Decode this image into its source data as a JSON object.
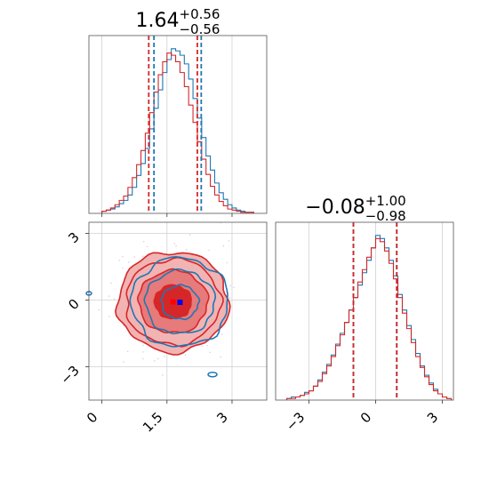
{
  "chart_data": [
    {
      "panel": "hist-param-1",
      "type": "histogram",
      "title": {
        "main": "1.64",
        "sup": "+0.56",
        "sub": "−0.56"
      },
      "xlim": [
        -0.3,
        3.8
      ],
      "x_ticks": [
        0.0,
        1.5,
        3.0
      ],
      "grid": true,
      "series": [
        {
          "color": "#1f77b4",
          "quantiles": [
            1.2,
            2.29
          ],
          "bins": [
            0.0,
            0.1,
            0.2,
            0.3,
            0.4,
            0.5,
            0.6,
            0.7,
            0.8,
            0.9,
            1.0,
            1.1,
            1.2,
            1.3,
            1.4,
            1.5,
            1.6,
            1.7,
            1.8,
            1.9,
            2.0,
            2.1,
            2.2,
            2.3,
            2.4,
            2.5,
            2.6,
            2.7,
            2.8,
            2.9,
            3.0,
            3.1,
            3.2,
            3.3,
            3.4,
            3.5
          ],
          "counts": [
            2,
            3,
            4,
            6,
            9,
            12,
            17,
            24,
            35,
            46,
            60,
            78,
            97,
            114,
            130,
            142,
            152,
            150,
            146,
            138,
            124,
            106,
            88,
            70,
            53,
            40,
            28,
            19,
            13,
            8,
            5,
            3,
            2,
            1,
            1
          ]
        },
        {
          "color": "#d62728",
          "quantiles": [
            1.08,
            2.2
          ],
          "bins": [
            0.0,
            0.1,
            0.2,
            0.3,
            0.4,
            0.5,
            0.6,
            0.7,
            0.8,
            0.9,
            1.0,
            1.1,
            1.2,
            1.3,
            1.4,
            1.5,
            1.6,
            1.7,
            1.8,
            1.9,
            2.0,
            2.1,
            2.2,
            2.3,
            2.4,
            2.5,
            2.6,
            2.7,
            2.8,
            2.9,
            3.0,
            3.1,
            3.2,
            3.3,
            3.4,
            3.5
          ],
          "counts": [
            2,
            3,
            5,
            8,
            12,
            16,
            24,
            33,
            45,
            58,
            74,
            93,
            112,
            128,
            140,
            148,
            146,
            140,
            130,
            117,
            100,
            84,
            66,
            50,
            36,
            25,
            17,
            11,
            7,
            4,
            3,
            2,
            1,
            1,
            1
          ]
        }
      ]
    },
    {
      "panel": "hist-param-2",
      "type": "histogram",
      "title": {
        "main": "−0.08",
        "sup": "+1.00",
        "sub": "−0.98"
      },
      "xlim": [
        -4.5,
        3.5
      ],
      "x_ticks": [
        -3,
        0,
        3
      ],
      "grid": true,
      "series": [
        {
          "color": "#1f77b4",
          "quantiles": [
            -1.0,
            0.95
          ],
          "bins": [
            -4.0,
            -3.8,
            -3.6,
            -3.4,
            -3.2,
            -3.0,
            -2.8,
            -2.6,
            -2.4,
            -2.2,
            -2.0,
            -1.8,
            -1.6,
            -1.4,
            -1.2,
            -1.0,
            -0.8,
            -0.6,
            -0.4,
            -0.2,
            0.0,
            0.2,
            0.4,
            0.6,
            0.8,
            1.0,
            1.2,
            1.4,
            1.6,
            1.8,
            2.0,
            2.2,
            2.4,
            2.6,
            2.8,
            3.0,
            3.2,
            3.4
          ],
          "counts": [
            1,
            2,
            2,
            3,
            5,
            6,
            9,
            13,
            18,
            23,
            29,
            36,
            43,
            50,
            58,
            66,
            74,
            82,
            90,
            98,
            106,
            104,
            98,
            90,
            80,
            68,
            58,
            48,
            39,
            30,
            22,
            16,
            11,
            7,
            4,
            2,
            1
          ]
        },
        {
          "color": "#d62728",
          "quantiles": [
            -1.0,
            0.95
          ],
          "bins": [
            -4.0,
            -3.8,
            -3.6,
            -3.4,
            -3.2,
            -3.0,
            -2.8,
            -2.6,
            -2.4,
            -2.2,
            -2.0,
            -1.8,
            -1.6,
            -1.4,
            -1.2,
            -1.0,
            -0.8,
            -0.6,
            -0.4,
            -0.2,
            0.0,
            0.2,
            0.4,
            0.6,
            0.8,
            1.0,
            1.2,
            1.4,
            1.6,
            1.8,
            2.0,
            2.2,
            2.4,
            2.6,
            2.8,
            3.0,
            3.2,
            3.4
          ],
          "counts": [
            1,
            1,
            2,
            3,
            4,
            6,
            9,
            12,
            17,
            22,
            28,
            35,
            42,
            50,
            58,
            66,
            76,
            84,
            92,
            98,
            104,
            102,
            96,
            88,
            78,
            66,
            56,
            46,
            37,
            28,
            21,
            15,
            10,
            6,
            4,
            2,
            1
          ]
        }
      ]
    },
    {
      "panel": "corner-2d",
      "type": "contour",
      "xlim": [
        -0.3,
        3.8
      ],
      "ylim": [
        -4.5,
        3.5
      ],
      "x_ticks": [
        0.0,
        1.5,
        3.0
      ],
      "y_ticks": [
        -3,
        0,
        3
      ],
      "grid": true,
      "series": [
        {
          "color": "#d62728",
          "center": [
            1.64,
            -0.08
          ],
          "sigma": [
            0.56,
            0.99
          ],
          "levels_sigma": [
            0.8,
            1.5,
            2.05,
            2.4
          ],
          "fills": [
            "#d62728",
            "#e77a7b",
            "#f2b3b3"
          ],
          "marker_color": "#ff0000"
        },
        {
          "color": "#1f77b4",
          "center": [
            1.8,
            -0.1
          ],
          "sigma": [
            0.56,
            1.0
          ],
          "levels_sigma": [
            0.8,
            1.5,
            2.1
          ],
          "fills": [],
          "marker_color": "#0000ff"
        }
      ]
    }
  ]
}
